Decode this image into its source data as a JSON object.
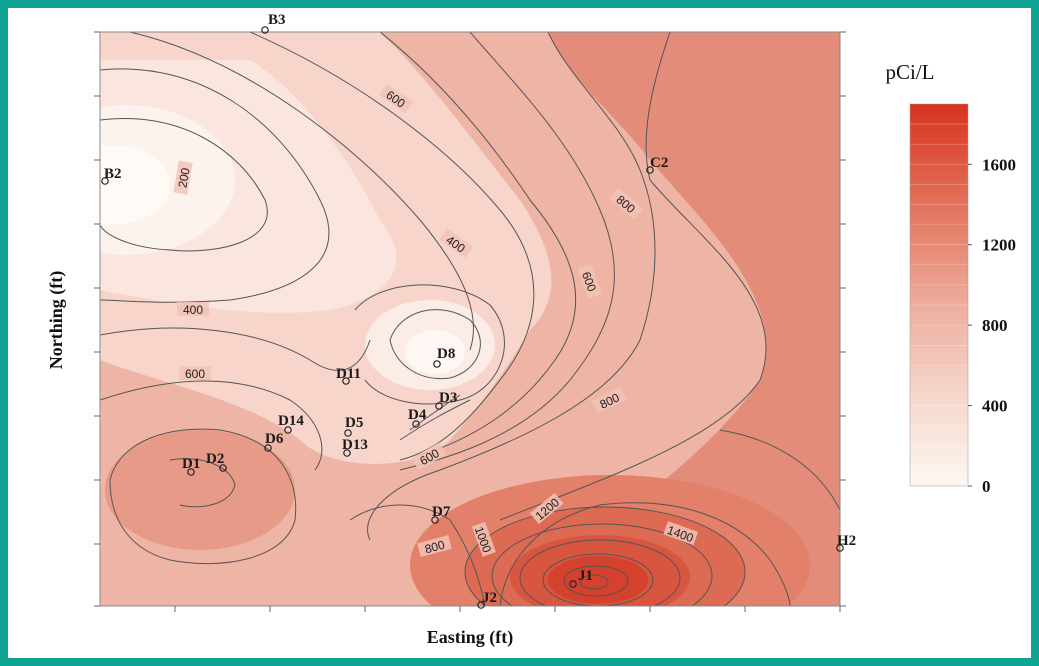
{
  "chart_data": {
    "type": "contour",
    "xlabel": "Easting (ft)",
    "ylabel": "Northing (ft)",
    "colorbar": {
      "title": "pCi/L",
      "ticks": [
        "0",
        "400",
        "800",
        "1200",
        "1600"
      ],
      "range": [
        0,
        1900
      ],
      "color_low": "#fdf8f2",
      "color_high": "#d8331f"
    },
    "contour_levels_labeled": [
      "200",
      "400",
      "600",
      "800",
      "1000",
      "1200",
      "1400"
    ],
    "contour_labels": [
      "600",
      "200",
      "800",
      "400",
      "600",
      "400",
      "600",
      "800",
      "600",
      "800",
      "1000",
      "1200",
      "1400"
    ],
    "wells": [
      {
        "name": "B3"
      },
      {
        "name": "B2"
      },
      {
        "name": "C2"
      },
      {
        "name": "D8"
      },
      {
        "name": "D11"
      },
      {
        "name": "D3"
      },
      {
        "name": "D4"
      },
      {
        "name": "D5"
      },
      {
        "name": "D14"
      },
      {
        "name": "D6"
      },
      {
        "name": "D13"
      },
      {
        "name": "D1"
      },
      {
        "name": "D2"
      },
      {
        "name": "D7"
      },
      {
        "name": "H2"
      },
      {
        "name": "J1"
      },
      {
        "name": "J2"
      }
    ]
  },
  "colors": {
    "frame": "#0fa394",
    "contour_line": "#555555"
  }
}
